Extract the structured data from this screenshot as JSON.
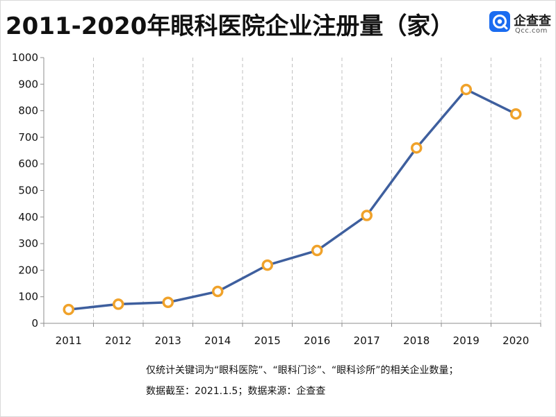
{
  "title": "2011-2020年眼科医院企业注册量（家）",
  "logo": {
    "name": "企查查",
    "sub": "Qcc.com",
    "icon": "qcc-logo-icon",
    "color": "#1a6cf0"
  },
  "notes": {
    "line1": "仅统计关键词为“眼科医院”、“眼科门诊”、“眼科诊所”的相关企业数量；",
    "line2": "数据截至：2021.1.5；数据来源：企查查"
  },
  "chart_data": {
    "type": "line",
    "title": "2011-2020年眼科医院企业注册量（家）",
    "xlabel": "",
    "ylabel": "",
    "categories": [
      "2011",
      "2012",
      "2013",
      "2014",
      "2015",
      "2016",
      "2017",
      "2018",
      "2019",
      "2020"
    ],
    "series": [
      {
        "values": [
          52,
          72,
          79,
          120,
          219,
          274,
          406,
          660,
          880,
          788
        ]
      }
    ],
    "ylim": [
      0,
      1000
    ],
    "yticks": [
      0,
      100,
      200,
      300,
      400,
      500,
      600,
      700,
      800,
      900,
      1000
    ],
    "grid": "vertical-dashed",
    "legend": "none",
    "colors": {
      "line": "#3e5f9e",
      "marker": "#f0a22a",
      "grid": "#bfbfbf",
      "axis": "#8c8c8c"
    }
  }
}
